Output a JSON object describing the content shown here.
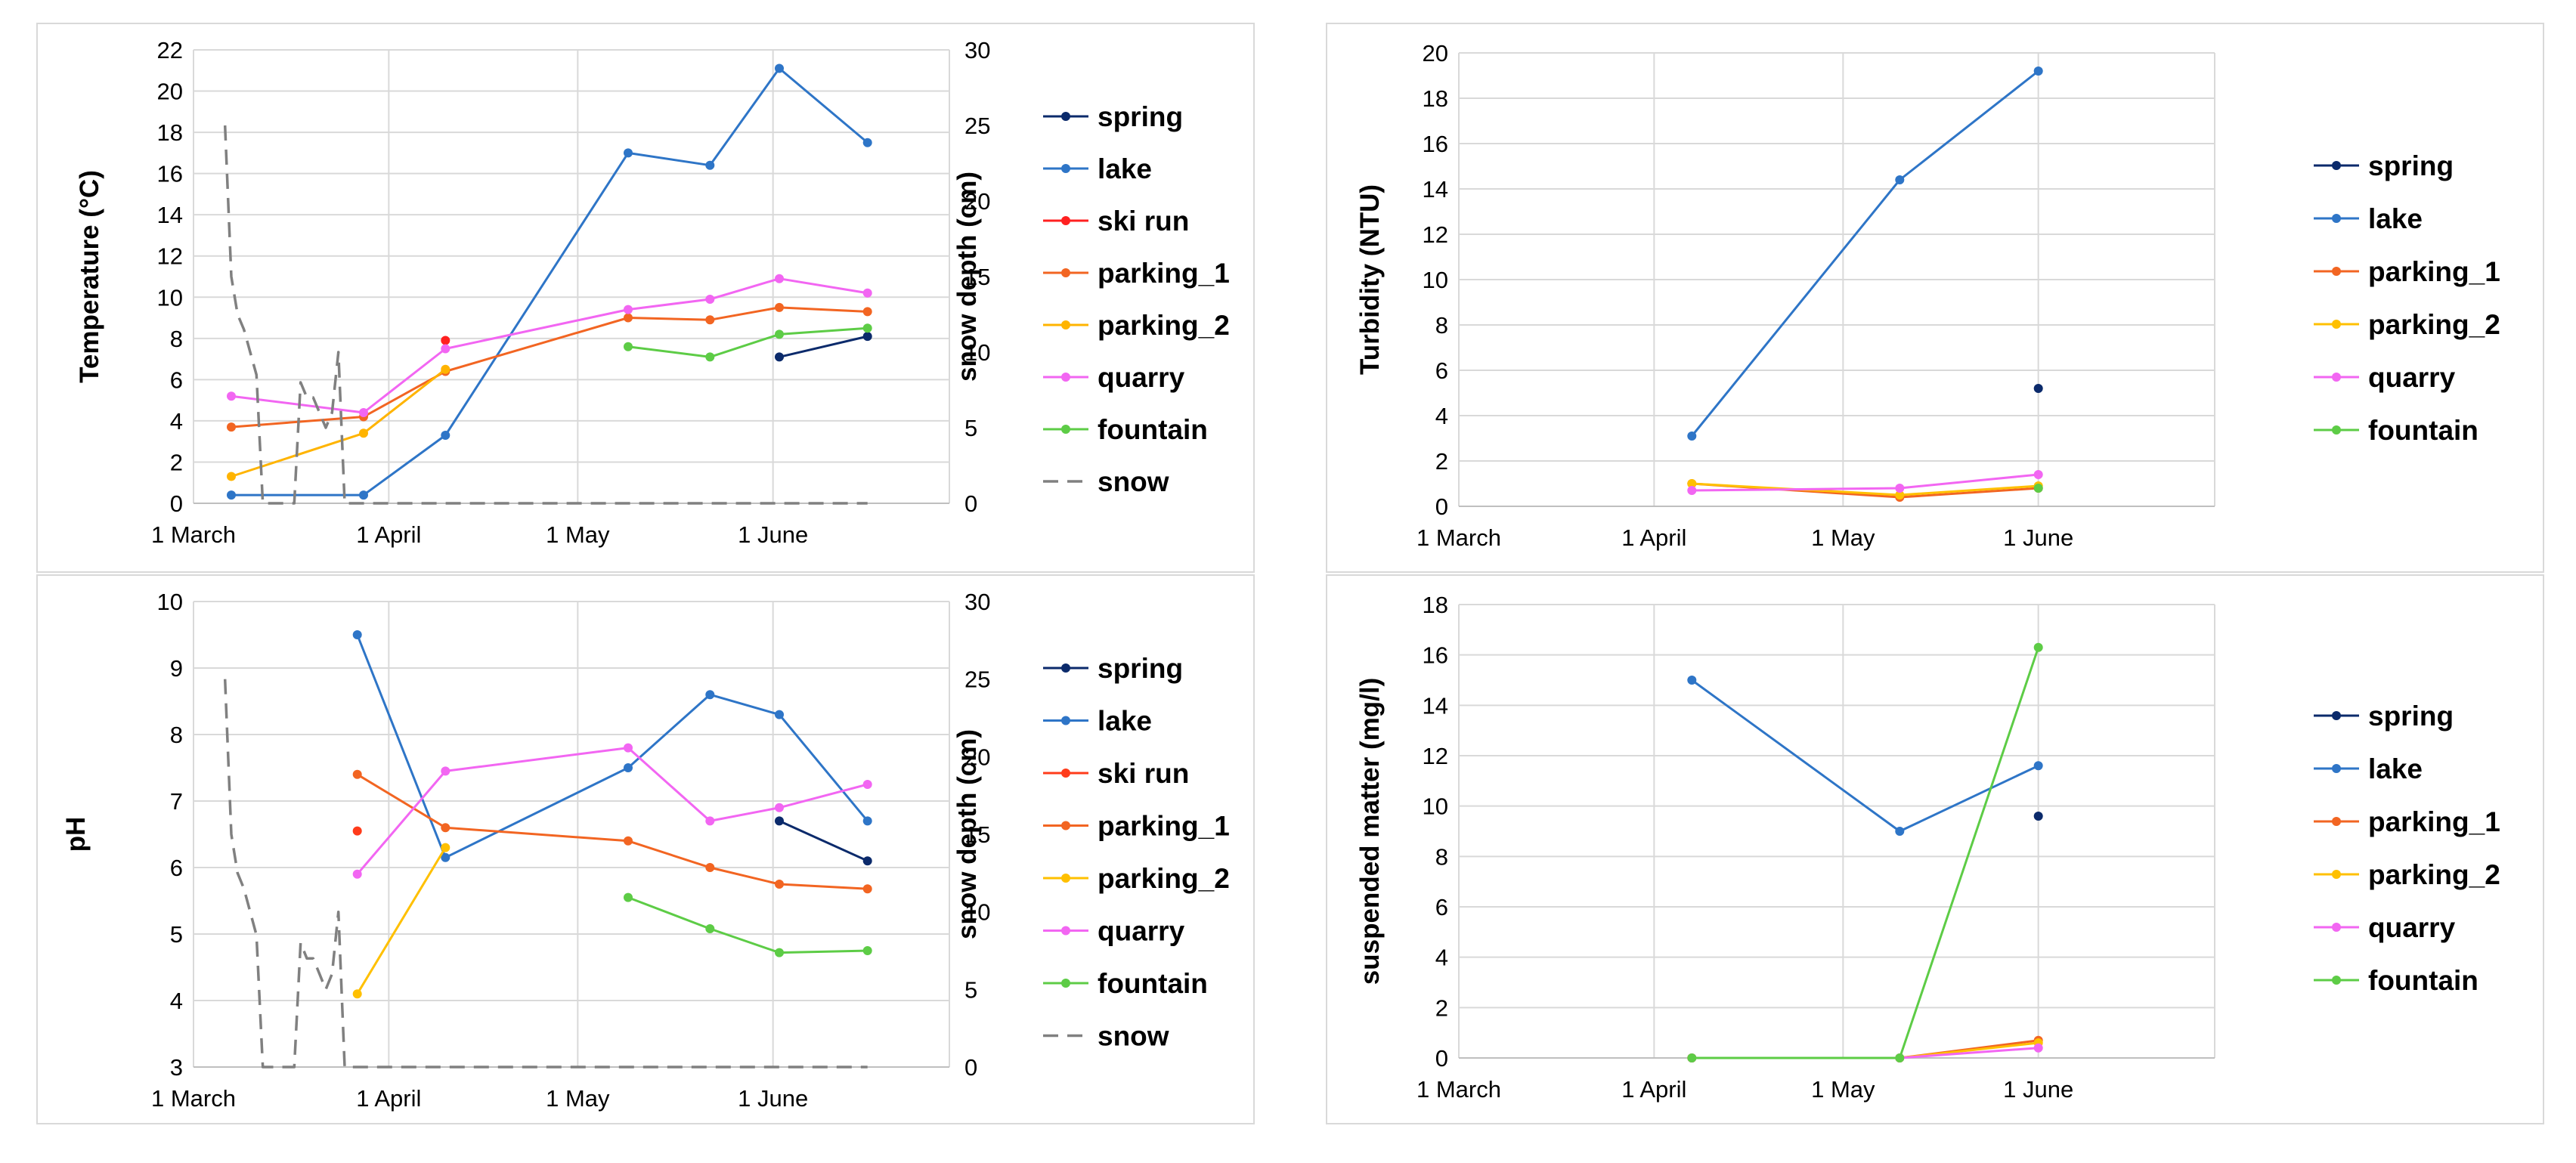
{
  "chart_data": [
    {
      "type": "line",
      "ylabel": "Temperature (°C)",
      "y2label": "snow depth (cm)",
      "x_ticks": [
        "1 March",
        "1 April",
        "1 May",
        "1 June"
      ],
      "y_ticks": [
        "0",
        "2",
        "4",
        "6",
        "8",
        "10",
        "12",
        "14",
        "16",
        "18",
        "20",
        "22"
      ],
      "y2_ticks": [
        "0",
        "5",
        "10",
        "15",
        "20",
        "25",
        "30"
      ],
      "ylim": [
        0,
        22
      ],
      "y2lim": [
        0,
        30
      ],
      "legend": [
        "spring",
        "lake",
        "ski run",
        "parking_1",
        "parking_2",
        "quarry",
        "fountain",
        "snow"
      ],
      "series": [
        {
          "name": "spring",
          "color": "#0b2a6b",
          "points": [
            [
              93,
              7.1
            ],
            [
              107,
              8.1
            ]
          ]
        },
        {
          "name": "lake",
          "color": "#2e75c7",
          "points": [
            [
              6,
              0.4
            ],
            [
              27,
              0.4
            ],
            [
              40,
              3.3
            ],
            [
              69,
              17.0
            ],
            [
              82,
              16.4
            ],
            [
              93,
              21.1
            ],
            [
              107,
              17.5
            ]
          ]
        },
        {
          "name": "ski run",
          "color": "#ff2020",
          "points": [
            [
              40,
              7.9
            ]
          ]
        },
        {
          "name": "parking_1",
          "color": "#f26522",
          "points": [
            [
              6,
              3.7
            ],
            [
              27,
              4.2
            ],
            [
              40,
              6.4
            ],
            [
              69,
              9.0
            ],
            [
              82,
              8.9
            ],
            [
              93,
              9.5
            ],
            [
              107,
              9.3
            ]
          ]
        },
        {
          "name": "parking_2",
          "color": "#ffb400",
          "points": [
            [
              6,
              1.3
            ],
            [
              27,
              3.4
            ],
            [
              40,
              6.5
            ]
          ]
        },
        {
          "name": "quarry",
          "color": "#f266f2",
          "points": [
            [
              6,
              5.2
            ],
            [
              27,
              4.4
            ],
            [
              40,
              7.5
            ],
            [
              69,
              9.4
            ],
            [
              82,
              9.9
            ],
            [
              93,
              10.9
            ],
            [
              107,
              10.2
            ]
          ]
        },
        {
          "name": "fountain",
          "color": "#5dcc46",
          "points": [
            [
              69,
              7.6
            ],
            [
              82,
              7.1
            ],
            [
              93,
              8.2
            ],
            [
              107,
              8.5
            ]
          ]
        },
        {
          "name": "snow",
          "axis": "y2",
          "dashed": true,
          "color": "#808080",
          "points": [
            [
              5,
              25
            ],
            [
              6,
              15
            ],
            [
              7,
              12.5
            ],
            [
              8,
              11.5
            ],
            [
              9,
              10
            ],
            [
              10,
              8.5
            ],
            [
              11,
              0
            ],
            [
              16,
              0
            ],
            [
              17,
              8
            ],
            [
              18,
              7
            ],
            [
              19,
              7
            ],
            [
              20,
              6
            ],
            [
              21,
              5
            ],
            [
              22,
              6
            ],
            [
              23,
              10
            ],
            [
              24,
              0
            ],
            [
              107,
              0
            ]
          ]
        }
      ]
    },
    {
      "type": "line",
      "ylabel": "Turbidity (NTU)",
      "x_ticks": [
        "1 March",
        "1 April",
        "1 May",
        "1 June"
      ],
      "y_ticks": [
        "0",
        "2",
        "4",
        "6",
        "8",
        "10",
        "12",
        "14",
        "16",
        "18",
        "20"
      ],
      "ylim": [
        0,
        20
      ],
      "legend": [
        "spring",
        "lake",
        "parking_1",
        "parking_2",
        "quarry",
        "fountain"
      ],
      "series": [
        {
          "name": "spring",
          "color": "#0b2a6b",
          "points": [
            [
              92,
              5.2
            ]
          ]
        },
        {
          "name": "lake",
          "color": "#2e75c7",
          "points": [
            [
              37,
              3.1
            ],
            [
              70,
              14.4
            ],
            [
              92,
              19.2
            ]
          ]
        },
        {
          "name": "parking_1",
          "color": "#f26522",
          "points": [
            [
              37,
              1.0
            ],
            [
              70,
              0.4
            ],
            [
              92,
              0.8
            ]
          ]
        },
        {
          "name": "parking_2",
          "color": "#ffc000",
          "points": [
            [
              37,
              1.0
            ],
            [
              70,
              0.5
            ],
            [
              92,
              0.9
            ]
          ]
        },
        {
          "name": "quarry",
          "color": "#f266f2",
          "points": [
            [
              37,
              0.7
            ],
            [
              70,
              0.8
            ],
            [
              92,
              1.4
            ]
          ]
        },
        {
          "name": "fountain",
          "color": "#5dcc46",
          "points": [
            [
              92,
              0.8
            ]
          ]
        }
      ]
    },
    {
      "type": "line",
      "ylabel": "pH",
      "y2label": "snow depth (cm)",
      "x_ticks": [
        "1 March",
        "1 April",
        "1 May",
        "1 June"
      ],
      "y_ticks": [
        "3",
        "4",
        "5",
        "6",
        "7",
        "8",
        "9",
        "10"
      ],
      "y2_ticks": [
        "0",
        "5",
        "10",
        "15",
        "20",
        "25",
        "30"
      ],
      "ylim": [
        3,
        10
      ],
      "y2lim": [
        0,
        30
      ],
      "legend": [
        "spring",
        "lake",
        "ski run",
        "parking_1",
        "parking_2",
        "quarry",
        "fountain",
        "snow"
      ],
      "series": [
        {
          "name": "spring",
          "color": "#0b2a6b",
          "points": [
            [
              93,
              6.7
            ],
            [
              107,
              6.1
            ]
          ]
        },
        {
          "name": "lake",
          "color": "#2e75c7",
          "points": [
            [
              26,
              9.5
            ],
            [
              40,
              6.15
            ],
            [
              69,
              7.5
            ],
            [
              82,
              8.6
            ],
            [
              93,
              8.3
            ],
            [
              107,
              6.7
            ]
          ]
        },
        {
          "name": "ski run",
          "color": "#ff3b1a",
          "points": [
            [
              26,
              6.55
            ]
          ]
        },
        {
          "name": "parking_1",
          "color": "#f26522",
          "points": [
            [
              26,
              7.4
            ],
            [
              40,
              6.6
            ],
            [
              69,
              6.4
            ],
            [
              82,
              6.0
            ],
            [
              93,
              5.75
            ],
            [
              107,
              5.68
            ]
          ]
        },
        {
          "name": "parking_2",
          "color": "#ffc000",
          "points": [
            [
              26,
              4.1
            ],
            [
              40,
              6.3
            ]
          ]
        },
        {
          "name": "quarry",
          "color": "#f266f2",
          "points": [
            [
              26,
              5.9
            ],
            [
              40,
              7.45
            ],
            [
              69,
              7.8
            ],
            [
              82,
              6.7
            ],
            [
              93,
              6.9
            ],
            [
              107,
              7.25
            ]
          ]
        },
        {
          "name": "fountain",
          "color": "#5dcc46",
          "points": [
            [
              69,
              5.55
            ],
            [
              82,
              5.08
            ],
            [
              93,
              4.72
            ],
            [
              107,
              4.75
            ]
          ]
        },
        {
          "name": "snow",
          "axis": "y2",
          "dashed": true,
          "color": "#808080",
          "points": [
            [
              5,
              25
            ],
            [
              6,
              15
            ],
            [
              7,
              12.5
            ],
            [
              8,
              11.5
            ],
            [
              9,
              10
            ],
            [
              10,
              8.5
            ],
            [
              11,
              0
            ],
            [
              16,
              0
            ],
            [
              17,
              8
            ],
            [
              18,
              7
            ],
            [
              19,
              7
            ],
            [
              20,
              6
            ],
            [
              21,
              5
            ],
            [
              22,
              6
            ],
            [
              23,
              10
            ],
            [
              24,
              0
            ],
            [
              107,
              0
            ]
          ]
        }
      ]
    },
    {
      "type": "line",
      "ylabel": "suspended matter (mg/l)",
      "x_ticks": [
        "1 March",
        "1 April",
        "1 May",
        "1 June"
      ],
      "y_ticks": [
        "0",
        "2",
        "4",
        "6",
        "8",
        "10",
        "12",
        "14",
        "16",
        "18"
      ],
      "ylim": [
        0,
        18
      ],
      "legend": [
        "spring",
        "lake",
        "parking_1",
        "parking_2",
        "quarry",
        "fountain"
      ],
      "series": [
        {
          "name": "spring",
          "color": "#0b2a6b",
          "points": [
            [
              92,
              9.6
            ]
          ]
        },
        {
          "name": "lake",
          "color": "#2e75c7",
          "points": [
            [
              37,
              15.0
            ],
            [
              70,
              9.0
            ],
            [
              92,
              11.6
            ]
          ]
        },
        {
          "name": "parking_1",
          "color": "#f26522",
          "points": [
            [
              37,
              0
            ],
            [
              70,
              0
            ],
            [
              92,
              0.7
            ]
          ]
        },
        {
          "name": "parking_2",
          "color": "#ffc000",
          "points": [
            [
              37,
              0
            ],
            [
              70,
              0
            ],
            [
              92,
              0.6
            ]
          ]
        },
        {
          "name": "quarry",
          "color": "#f266f2",
          "points": [
            [
              37,
              0
            ],
            [
              70,
              0
            ],
            [
              92,
              0.4
            ]
          ]
        },
        {
          "name": "fountain",
          "color": "#5dcc46",
          "points": [
            [
              37,
              0
            ],
            [
              70,
              0
            ],
            [
              92,
              16.3
            ]
          ]
        }
      ]
    }
  ]
}
